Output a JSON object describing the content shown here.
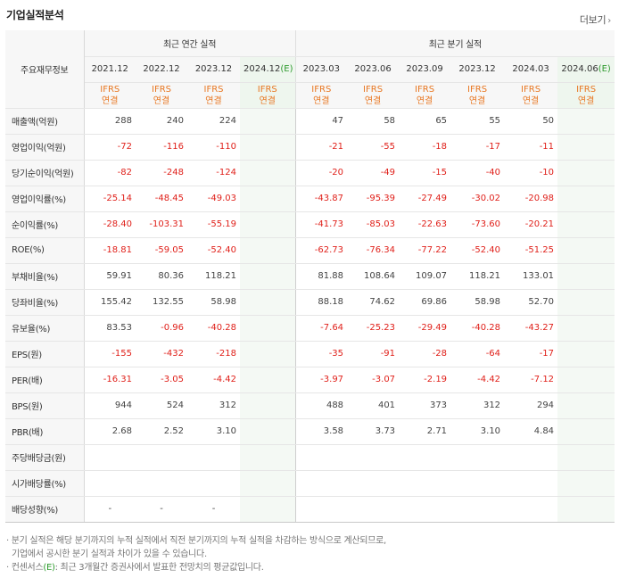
{
  "title": "기업실적분석",
  "more_label": "더보기",
  "header": {
    "corner_label": "주요재무정보",
    "annual_group": "최근 연간 실적",
    "quarter_group": "최근 분기 실적",
    "periods": [
      {
        "label": "2021.12",
        "est": ""
      },
      {
        "label": "2022.12",
        "est": ""
      },
      {
        "label": "2023.12",
        "est": ""
      },
      {
        "label": "2024.12",
        "est": "(E)"
      },
      {
        "label": "2023.03",
        "est": ""
      },
      {
        "label": "2023.06",
        "est": ""
      },
      {
        "label": "2023.09",
        "est": ""
      },
      {
        "label": "2023.12",
        "est": ""
      },
      {
        "label": "2024.03",
        "est": ""
      },
      {
        "label": "2024.06",
        "est": "(E)"
      }
    ],
    "basis_top": "IFRS",
    "basis_bottom": "연결"
  },
  "rows": [
    {
      "label": "매출액(억원)",
      "values": [
        "288",
        "240",
        "224",
        "",
        "47",
        "58",
        "65",
        "55",
        "50",
        ""
      ]
    },
    {
      "label": "영업이익(억원)",
      "values": [
        "-72",
        "-116",
        "-110",
        "",
        "-21",
        "-55",
        "-18",
        "-17",
        "-11",
        ""
      ]
    },
    {
      "label": "당기순이익(억원)",
      "values": [
        "-82",
        "-248",
        "-124",
        "",
        "-20",
        "-49",
        "-15",
        "-40",
        "-10",
        ""
      ]
    },
    {
      "label": "영업이익률(%)",
      "values": [
        "-25.14",
        "-48.45",
        "-49.03",
        "",
        "-43.87",
        "-95.39",
        "-27.49",
        "-30.02",
        "-20.98",
        ""
      ]
    },
    {
      "label": "순이익률(%)",
      "values": [
        "-28.40",
        "-103.31",
        "-55.19",
        "",
        "-41.73",
        "-85.03",
        "-22.63",
        "-73.60",
        "-20.21",
        ""
      ]
    },
    {
      "label": "ROE(%)",
      "values": [
        "-18.81",
        "-59.05",
        "-52.40",
        "",
        "-62.73",
        "-76.34",
        "-77.22",
        "-52.40",
        "-51.25",
        ""
      ]
    },
    {
      "label": "부채비율(%)",
      "values": [
        "59.91",
        "80.36",
        "118.21",
        "",
        "81.88",
        "108.64",
        "109.07",
        "118.21",
        "133.01",
        ""
      ]
    },
    {
      "label": "당좌비율(%)",
      "values": [
        "155.42",
        "132.55",
        "58.98",
        "",
        "88.18",
        "74.62",
        "69.86",
        "58.98",
        "52.70",
        ""
      ]
    },
    {
      "label": "유보율(%)",
      "values": [
        "83.53",
        "-0.96",
        "-40.28",
        "",
        "-7.64",
        "-25.23",
        "-29.49",
        "-40.28",
        "-43.27",
        ""
      ]
    },
    {
      "label": "EPS(원)",
      "values": [
        "-155",
        "-432",
        "-218",
        "",
        "-35",
        "-91",
        "-28",
        "-64",
        "-17",
        ""
      ]
    },
    {
      "label": "PER(배)",
      "values": [
        "-16.31",
        "-3.05",
        "-4.42",
        "",
        "-3.97",
        "-3.07",
        "-2.19",
        "-4.42",
        "-7.12",
        ""
      ]
    },
    {
      "label": "BPS(원)",
      "values": [
        "944",
        "524",
        "312",
        "",
        "488",
        "401",
        "373",
        "312",
        "294",
        ""
      ]
    },
    {
      "label": "PBR(배)",
      "values": [
        "2.68",
        "2.52",
        "3.10",
        "",
        "3.58",
        "3.73",
        "2.71",
        "3.10",
        "4.84",
        ""
      ]
    },
    {
      "label": "주당배당금(원)",
      "values": [
        "",
        "",
        "",
        "",
        "",
        "",
        "",
        "",
        "",
        ""
      ]
    },
    {
      "label": "시가배당률(%)",
      "values": [
        "",
        "",
        "",
        "",
        "",
        "",
        "",
        "",
        "",
        ""
      ]
    },
    {
      "label": "배당성향(%)",
      "values": [
        "-",
        "-",
        "-",
        "",
        "",
        "",
        "",
        "",
        "",
        ""
      ]
    }
  ],
  "notes": {
    "line1": "· 분기 실적은 해당 분기까지의 누적 실적에서 직전 분기까지의 누적 실적을 차감하는 방식으로 계산되므로,",
    "line2": "기업에서 공시한 분기 실적과 차이가 있을 수 있습니다.",
    "line3_prefix": "· 컨센서스",
    "line3_est": "(E)",
    "line3_suffix": ": 최근 3개월간 증권사에서 발표한 전망치의 평균값입니다."
  }
}
